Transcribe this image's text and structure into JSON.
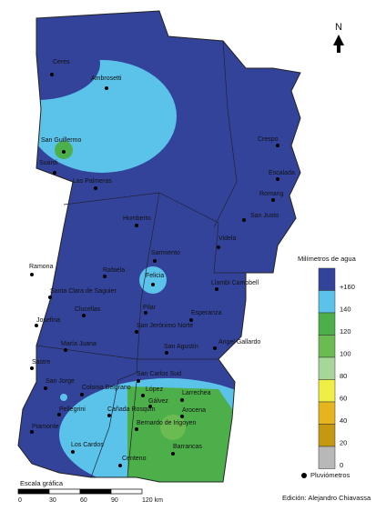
{
  "north": "N",
  "places": [
    "Ceres",
    "Ambrosetti",
    "San Guillermo",
    "Suardi",
    "Las Palmeras",
    "Crespo",
    "Escalada",
    "Romang",
    "San Justo",
    "Humberto",
    "Videla",
    "Sarmiento",
    "Ramona",
    "Rafaela",
    "Felicia",
    "Llambi Campbell",
    "Santa Clara de Saguier",
    "Clucellas",
    "Pilar",
    "Esperanza",
    "Josefina",
    "San Jerónimo Norte",
    "Angel Gallardo",
    "María Juana",
    "San Agustín",
    "Sastre",
    "San Carlos Sud",
    "San Jorge",
    "Colonia Belgrano",
    "López",
    "Larrechea",
    "Pellegrini",
    "Cañada Rosquín",
    "Gálvez",
    "Arocena",
    "Bernardo de Irigoyen",
    "Piamonte",
    "Los Cardos",
    "Barrancas",
    "Centeno"
  ],
  "legend": {
    "title": "Milímetros de agua",
    "items": [
      {
        "label": "+160",
        "color": "#33439a"
      },
      {
        "label": "140",
        "color": "#5bc3ea"
      },
      {
        "label": "120",
        "color": "#4daf4a"
      },
      {
        "label": "100",
        "color": "#6cbb52"
      },
      {
        "label": "80",
        "color": "#a7d69b"
      },
      {
        "label": "60",
        "color": "#eeee44"
      },
      {
        "label": "40",
        "color": "#e6b51e"
      },
      {
        "label": "20",
        "color": "#c6980f"
      },
      {
        "label": "0",
        "color": "#b8b8b8"
      }
    ]
  },
  "scale": {
    "title": "Escala gráfica",
    "ticks": [
      "0",
      "30",
      "60",
      "90",
      "120 km"
    ]
  },
  "gauge_legend": "Pluviómetros",
  "credit": "Edición: Alejandro Chiavassa"
}
